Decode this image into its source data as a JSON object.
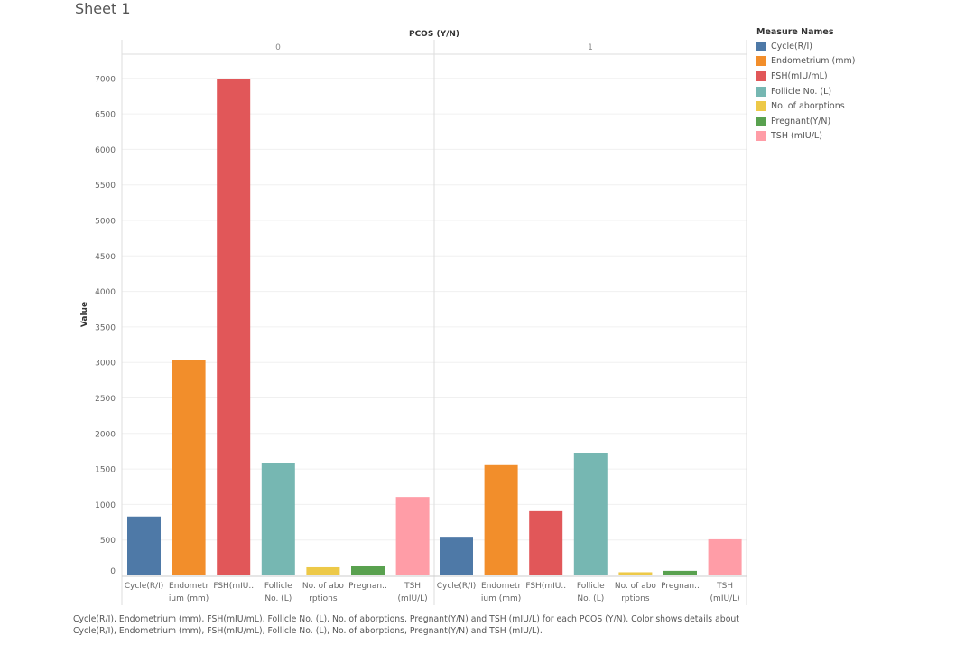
{
  "sheet_title": "Sheet 1",
  "chart_data": {
    "type": "bar",
    "column_header": "PCOS (Y/N)",
    "panels": [
      "0",
      "1"
    ],
    "ylabel": "Value",
    "ylim": [
      0,
      7300
    ],
    "yticks": [
      0,
      500,
      1000,
      1500,
      2000,
      2500,
      3000,
      3500,
      4000,
      4500,
      5000,
      5500,
      6000,
      6500,
      7000
    ],
    "grid": true,
    "categories": [
      "Cycle(R/I)",
      "Endometrium (mm)",
      "FSH(mIU/mL)",
      "Follicle No. (L)",
      "No. of aborptions",
      "Pregnant(Y/N)",
      "TSH (mIU/L)"
    ],
    "tick_labels": [
      [
        "Cycle(R/I)"
      ],
      [
        "Endometr",
        "ium (mm)"
      ],
      [
        "FSH(mIU.."
      ],
      [
        "Follicle",
        "No. (L)"
      ],
      [
        "No. of abo",
        "rptions"
      ],
      [
        "Pregnan.."
      ],
      [
        "TSH",
        "(mIU/L)"
      ]
    ],
    "colors": [
      "#4e79a7",
      "#f28e2b",
      "#e15759",
      "#76b7b2",
      "#edc948",
      "#59a14f",
      "#ff9da7"
    ],
    "series": [
      {
        "panel": "0",
        "values": [
          830,
          3030,
          6990,
          1580,
          115,
          140,
          1105
        ]
      },
      {
        "panel": "1",
        "values": [
          545,
          1555,
          905,
          1730,
          45,
          65,
          510
        ]
      }
    ],
    "legend": {
      "title": "Measure Names",
      "placement": "right"
    }
  },
  "caption": "Cycle(R/I), Endometrium (mm), FSH(mIU/mL), Follicle No. (L), No. of aborptions, Pregnant(Y/N) and TSH (mIU/L) for each PCOS (Y/N).  Color shows details about Cycle(R/I), Endometrium (mm), FSH(mIU/mL), Follicle No. (L), No. of aborptions, Pregnant(Y/N) and TSH (mIU/L)."
}
